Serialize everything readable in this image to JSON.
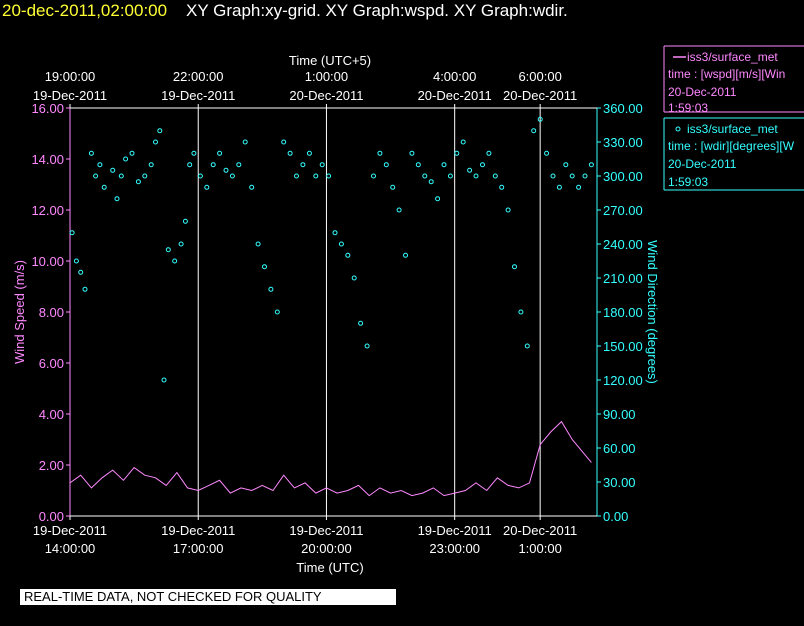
{
  "header": {
    "timestamp": "20-dec-2011,02:00:00",
    "graphs": "XY Graph:xy-grid.  XY Graph:wspd.  XY Graph:wdir."
  },
  "legend": {
    "wspd": {
      "line1": "iss3/surface_met",
      "line2": "time : [wspd][m/s][Win",
      "line3": "20-Dec-2011",
      "line4": "1:59:03",
      "color": "#ff88ff"
    },
    "wdir": {
      "line1": "iss3/surface_met",
      "line2": "time : [wdir][degrees][W",
      "line3": "20-Dec-2011",
      "line4": "1:59:03",
      "color": "#33ffff"
    }
  },
  "footer": {
    "qc_text": "REAL-TIME DATA, NOT CHECKED FOR QUALITY"
  },
  "chart_data": {
    "type": "line",
    "top_axis": {
      "label": "Time (UTC+5)",
      "ticks": [
        {
          "x": 0,
          "time": "19:00:00",
          "date": "19-Dec-2011"
        },
        {
          "x": 3,
          "time": "22:00:00",
          "date": "19-Dec-2011"
        },
        {
          "x": 6,
          "time": "1:00:00",
          "date": "20-Dec-2011"
        },
        {
          "x": 9,
          "time": "4:00:00",
          "date": "20-Dec-2011"
        },
        {
          "x": 11,
          "time": "6:00:00",
          "date": "20-Dec-2011"
        }
      ]
    },
    "bottom_axis": {
      "label": "Time (UTC)",
      "ticks": [
        {
          "x": 0,
          "date": "19-Dec-2011",
          "time": "14:00:00"
        },
        {
          "x": 3,
          "date": "19-Dec-2011",
          "time": "17:00:00"
        },
        {
          "x": 6,
          "date": "19-Dec-2011",
          "time": "20:00:00"
        },
        {
          "x": 9,
          "date": "19-Dec-2011",
          "time": "23:00:00"
        },
        {
          "x": 11,
          "date": "20-Dec-2011",
          "time": "1:00:00"
        }
      ]
    },
    "xlim": [
      0,
      12.33
    ],
    "grid_x": [
      3,
      6,
      9,
      11
    ],
    "left_axis": {
      "label": "Wind Speed (m/s)",
      "ylim": [
        0,
        16
      ],
      "ticks": [
        "0.00",
        "2.00",
        "4.00",
        "6.00",
        "8.00",
        "10.00",
        "12.00",
        "14.00",
        "16.00"
      ]
    },
    "right_axis": {
      "label": "Wind Direction (degrees)",
      "ylim": [
        0,
        360
      ],
      "ticks": [
        "0.00",
        "30.00",
        "60.00",
        "90.00",
        "120.00",
        "150.00",
        "180.00",
        "210.00",
        "240.00",
        "270.00",
        "300.00",
        "330.00",
        "360.00"
      ]
    },
    "series": [
      {
        "name": "wspd",
        "axis": "left",
        "style": "line",
        "x": [
          0.0,
          0.25,
          0.5,
          0.75,
          1.0,
          1.25,
          1.5,
          1.75,
          2.0,
          2.25,
          2.5,
          2.75,
          3.0,
          3.25,
          3.5,
          3.75,
          4.0,
          4.25,
          4.5,
          4.75,
          5.0,
          5.25,
          5.5,
          5.75,
          6.0,
          6.25,
          6.5,
          6.75,
          7.0,
          7.25,
          7.5,
          7.75,
          8.0,
          8.25,
          8.5,
          8.75,
          9.0,
          9.25,
          9.5,
          9.75,
          10.0,
          10.25,
          10.5,
          10.75,
          11.0,
          11.25,
          11.5,
          11.75,
          12.0,
          12.2
        ],
        "values": [
          1.3,
          1.6,
          1.1,
          1.5,
          1.8,
          1.4,
          1.9,
          1.6,
          1.5,
          1.2,
          1.7,
          1.1,
          1.0,
          1.2,
          1.4,
          0.9,
          1.1,
          1.0,
          1.2,
          1.0,
          1.6,
          1.1,
          1.3,
          0.9,
          1.1,
          0.9,
          1.0,
          1.2,
          0.8,
          1.1,
          0.9,
          1.0,
          0.8,
          0.9,
          1.1,
          0.8,
          0.9,
          1.0,
          1.3,
          1.0,
          1.5,
          1.2,
          1.1,
          1.3,
          2.8,
          3.3,
          3.7,
          3.0,
          2.5,
          2.1
        ]
      },
      {
        "name": "wdir",
        "axis": "right",
        "style": "scatter",
        "x": [
          0.05,
          0.15,
          0.25,
          0.35,
          0.5,
          0.6,
          0.7,
          0.8,
          1.0,
          1.1,
          1.2,
          1.3,
          1.45,
          1.6,
          1.75,
          1.9,
          2.0,
          2.1,
          2.2,
          2.3,
          2.45,
          2.6,
          2.7,
          2.8,
          2.9,
          3.05,
          3.2,
          3.35,
          3.5,
          3.65,
          3.8,
          3.95,
          4.1,
          4.25,
          4.4,
          4.55,
          4.7,
          4.85,
          5.0,
          5.15,
          5.3,
          5.45,
          5.6,
          5.75,
          5.9,
          6.05,
          6.2,
          6.35,
          6.5,
          6.65,
          6.8,
          6.95,
          7.1,
          7.25,
          7.4,
          7.55,
          7.7,
          7.85,
          8.0,
          8.15,
          8.3,
          8.45,
          8.6,
          8.75,
          8.9,
          9.05,
          9.2,
          9.35,
          9.5,
          9.65,
          9.8,
          9.95,
          10.1,
          10.25,
          10.4,
          10.55,
          10.7,
          10.85,
          11.0,
          11.15,
          11.3,
          11.45,
          11.6,
          11.75,
          11.9,
          12.05,
          12.2
        ],
        "values": [
          250,
          225,
          215,
          200,
          320,
          300,
          310,
          290,
          305,
          280,
          300,
          315,
          320,
          295,
          300,
          310,
          330,
          340,
          120,
          235,
          225,
          240,
          260,
          310,
          320,
          300,
          290,
          310,
          320,
          305,
          300,
          310,
          330,
          290,
          240,
          220,
          200,
          180,
          330,
          320,
          300,
          310,
          320,
          300,
          310,
          300,
          250,
          240,
          230,
          210,
          170,
          150,
          300,
          320,
          310,
          290,
          270,
          230,
          320,
          310,
          300,
          295,
          280,
          310,
          300,
          320,
          330,
          305,
          300,
          310,
          320,
          300,
          290,
          270,
          220,
          180,
          150,
          340,
          350,
          320,
          300,
          290,
          310,
          300,
          290,
          300,
          310
        ]
      }
    ],
    "colors": {
      "wspd": "#ff88ff",
      "wdir": "#33ffff",
      "grid": "#ffffff",
      "axes": "#ffffff"
    }
  }
}
